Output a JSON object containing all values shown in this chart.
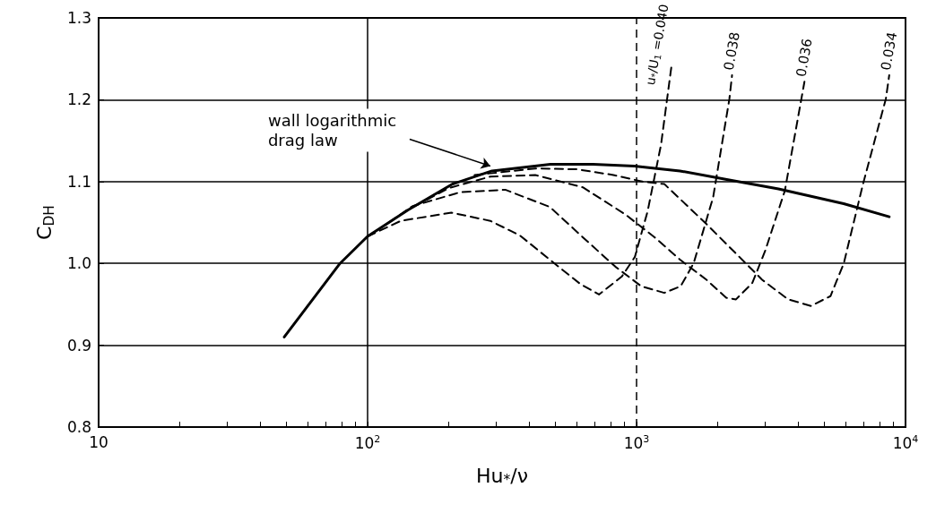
{
  "chart_data": {
    "type": "line",
    "xlabel": "Hu$_{*}$/ν",
    "ylabel": "C$_{DH}$",
    "log": "x",
    "grid": "y",
    "legend": false,
    "marker": "none",
    "xlim": [
      10,
      10000
    ],
    "ylim": [
      0.8,
      1.3
    ],
    "xticks": [
      10,
      {
        "value": 20,
        "label": null
      },
      {
        "value": 30,
        "label": null
      },
      {
        "value": 40,
        "label": null
      },
      {
        "value": 50,
        "label": null
      },
      {
        "value": 60,
        "label": null
      },
      {
        "value": 70,
        "label": null
      },
      {
        "value": 80,
        "label": null
      },
      {
        "value": 90,
        "label": null
      },
      {
        "value": 100,
        "label": "10$^{2}$"
      },
      {
        "value": 200,
        "label": null
      },
      {
        "value": 300,
        "label": null
      },
      {
        "value": 400,
        "label": null
      },
      {
        "value": 500,
        "label": null
      },
      {
        "value": 600,
        "label": null
      },
      {
        "value": 700,
        "label": null
      },
      {
        "value": 800,
        "label": null
      },
      {
        "value": 900,
        "label": null
      },
      {
        "value": 1000,
        "label": "10$^{3}$"
      },
      {
        "value": 2000,
        "label": null
      },
      {
        "value": 3000,
        "label": null
      },
      {
        "value": 4000,
        "label": null
      },
      {
        "value": 5000,
        "label": null
      },
      {
        "value": 6000,
        "label": null
      },
      {
        "value": 7000,
        "label": null
      },
      {
        "value": 8000,
        "label": null
      },
      {
        "value": 9000,
        "label": null
      },
      {
        "value": 10000,
        "label": "10$^{4}$"
      }
    ],
    "yticks": [
      0.8,
      0.9,
      {
        "value": 1,
        "label": "1.0"
      },
      1.1,
      1.2,
      1.3
    ],
    "ref_lines": [
      {
        "axis": "x",
        "value": 100,
        "color": "#000000",
        "line_style": "solid"
      },
      {
        "axis": "x",
        "value": 1000,
        "color": "#000000",
        "line_style": "dashed"
      }
    ],
    "annotations": [
      {
        "text": "wall logarithmic\ndrag law",
        "x": 286,
        "y": 1.119
      }
    ],
    "series": [
      {
        "color": "#000000",
        "line_style": "solid",
        "x": [
          49,
          79,
          100,
          141,
          207,
          290,
          478,
          690,
          980,
          1450,
          2210,
          3370,
          5890,
          8700
        ],
        "values": [
          0.91,
          1.0,
          1.033,
          1.065,
          1.097,
          1.113,
          1.121,
          1.121,
          1.119,
          1.113,
          1.102,
          1.091,
          1.073,
          1.057
        ]
      },
      {
        "name": "u$_{*}$/U$_{1}$ =0.040",
        "color": "#000000",
        "line_style": "dashed",
        "x": [
          100,
          133,
          205,
          286,
          369,
          478,
          617,
          725,
          882,
          986,
          1100,
          1233,
          1347
        ],
        "values": [
          1.033,
          1.052,
          1.062,
          1.052,
          1.034,
          1.004,
          0.975,
          0.962,
          0.984,
          1.008,
          1.064,
          1.145,
          1.24
        ]
      },
      {
        "name": "0.038",
        "color": "#000000",
        "line_style": "dashed",
        "x": [
          120,
          147,
          221,
          325,
          476,
          631,
          834,
          1042,
          1268,
          1458,
          1630,
          1927,
          2214,
          2265
        ],
        "values": [
          1.05,
          1.07,
          1.087,
          1.09,
          1.069,
          1.032,
          0.996,
          0.972,
          0.964,
          0.972,
          1.0,
          1.081,
          1.201,
          1.23
        ]
      },
      {
        "name": "0.036",
        "color": "#000000",
        "line_style": "dashed",
        "x": [
          150,
          200,
          286,
          420,
          631,
          907,
          1166,
          1458,
          1820,
          2153,
          2343,
          2693,
          3013,
          3560,
          4210
        ],
        "values": [
          1.07,
          1.092,
          1.106,
          1.108,
          1.093,
          1.06,
          1.032,
          1.004,
          0.98,
          0.958,
          0.956,
          0.976,
          1.016,
          1.089,
          1.222
        ]
      },
      {
        "name": "0.034",
        "color": "#000000",
        "line_style": "dashed",
        "x": [
          250,
          420,
          600,
          820,
          1050,
          1268,
          1820,
          2410,
          2930,
          3660,
          4450,
          5260,
          5895,
          6950,
          8450,
          8700
        ],
        "values": [
          1.108,
          1.116,
          1.115,
          1.108,
          1.1,
          1.097,
          1.048,
          1.008,
          0.98,
          0.956,
          0.948,
          0.96,
          1.0,
          1.097,
          1.201,
          1.23
        ]
      }
    ]
  }
}
